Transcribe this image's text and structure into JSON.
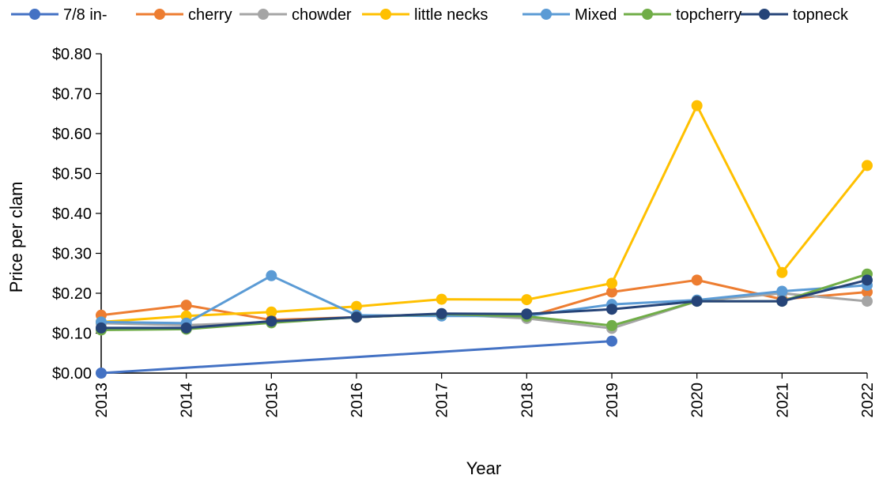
{
  "chart_data": {
    "type": "line",
    "title": "",
    "xlabel": "Year",
    "ylabel": "Price per clam",
    "categories": [
      "2013",
      "2014",
      "2015",
      "2016",
      "2017",
      "2018",
      "2019",
      "2020",
      "2021",
      "2022"
    ],
    "yticks": [
      0,
      0.1,
      0.2,
      0.3,
      0.4,
      0.5,
      0.6,
      0.7,
      0.8
    ],
    "ytick_labels": [
      "$0.00",
      "$0.10",
      "$0.20",
      "$0.30",
      "$0.40",
      "$0.50",
      "$0.60",
      "$0.70",
      "$0.80"
    ],
    "ylim": [
      0,
      0.8
    ],
    "grid": false,
    "legend_position": "top",
    "series": [
      {
        "name": "7/8 in-",
        "color": "#4472C4",
        "values": [
          0.0,
          null,
          null,
          null,
          null,
          null,
          0.08,
          null,
          null,
          null
        ]
      },
      {
        "name": "cherry",
        "color": "#ED7D31",
        "values": [
          0.145,
          0.17,
          0.133,
          0.14,
          0.148,
          0.14,
          0.203,
          0.233,
          0.185,
          0.203
        ]
      },
      {
        "name": "chowder",
        "color": "#A5A5A5",
        "values": [
          0.125,
          0.12,
          0.128,
          0.14,
          0.148,
          0.137,
          0.112,
          0.18,
          0.2,
          0.18
        ]
      },
      {
        "name": "little necks",
        "color": "#FFC000",
        "values": [
          0.128,
          0.143,
          0.153,
          0.167,
          0.185,
          0.184,
          0.225,
          0.67,
          0.252,
          0.52
        ]
      },
      {
        "name": "Mixed",
        "color": "#5B9BD5",
        "values": [
          0.128,
          0.125,
          0.244,
          0.145,
          0.143,
          0.143,
          0.172,
          0.183,
          0.205,
          0.22
        ]
      },
      {
        "name": "topcherry",
        "color": "#70AD47",
        "values": [
          0.108,
          0.11,
          0.126,
          0.14,
          0.148,
          0.142,
          0.119,
          0.18,
          0.18,
          0.248
        ]
      },
      {
        "name": "topneck",
        "color": "#264478",
        "values": [
          0.113,
          0.113,
          0.13,
          0.14,
          0.149,
          0.148,
          0.16,
          0.18,
          0.18,
          0.233
        ]
      }
    ]
  }
}
